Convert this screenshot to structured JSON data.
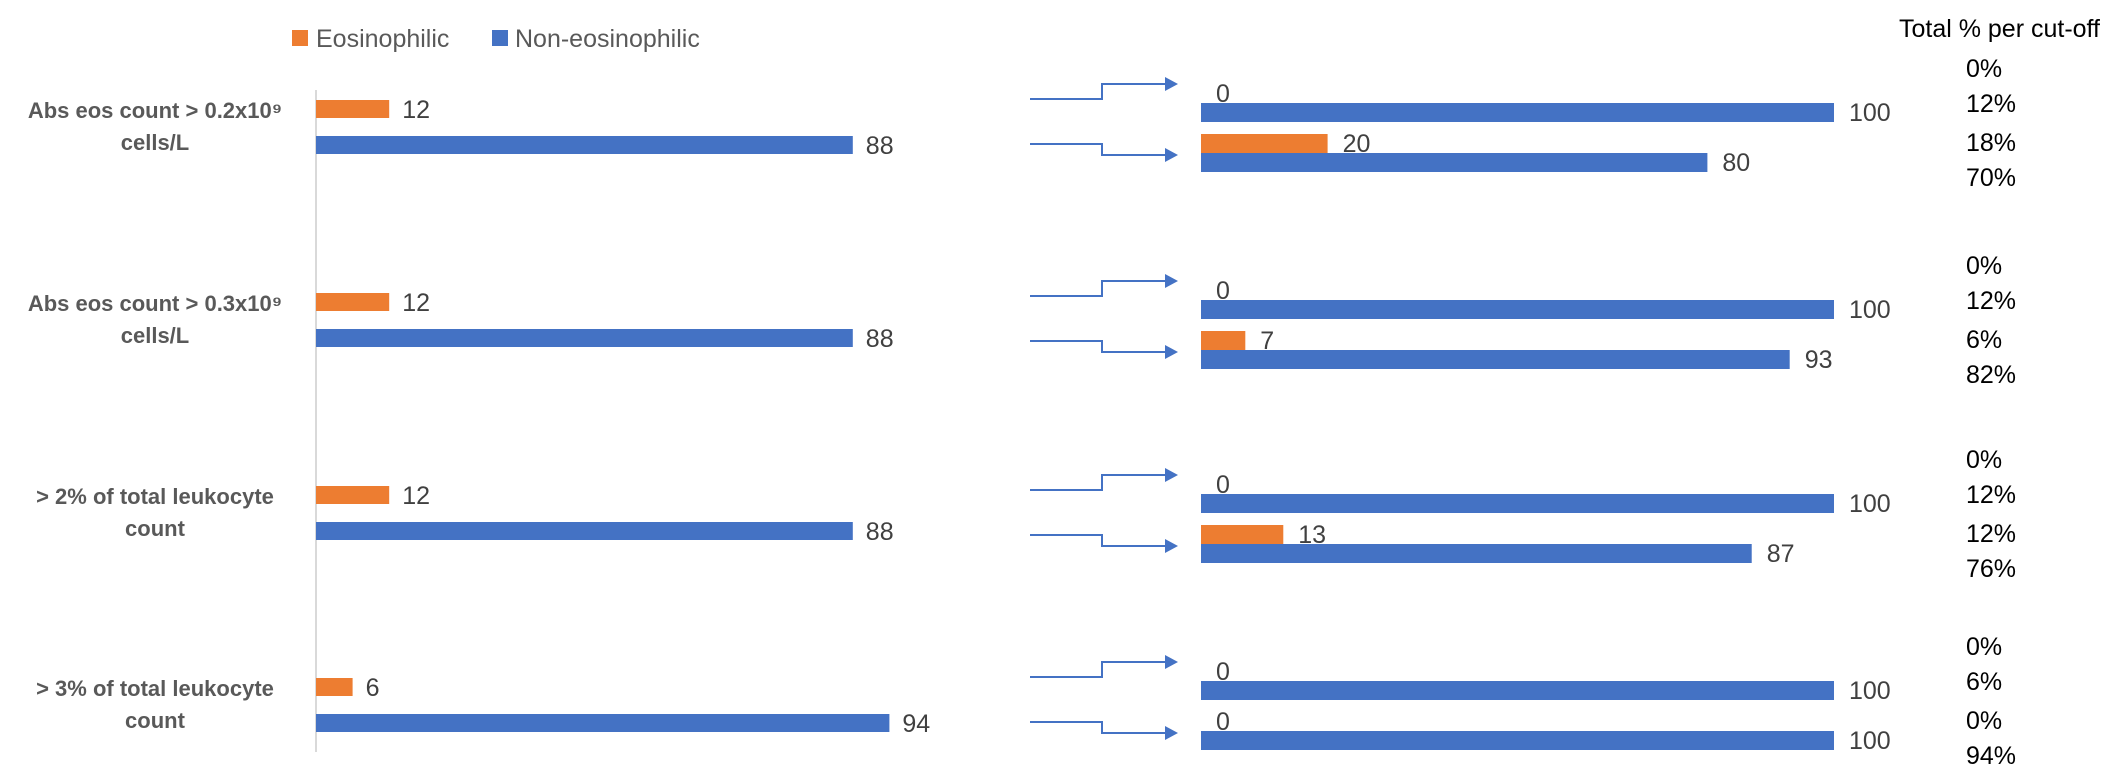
{
  "chart_data": {
    "type": "bar",
    "orientation": "horizontal",
    "legend": {
      "placement": "top",
      "entries": [
        {
          "name": "Eosinophilic",
          "color": "#ed7d31"
        },
        {
          "name": "Non-eosinophilic",
          "color": "#4472c4"
        }
      ]
    },
    "grid": false,
    "main_chart": {
      "categories": [
        [
          "Abs eos count > 0.2x10⁹",
          "cells/L"
        ],
        [
          "Abs eos count > 0.3x10⁹",
          "cells/L"
        ],
        [
          "> 2% of total leukocyte",
          "count"
        ],
        [
          "> 3% of total leukocyte",
          "count"
        ]
      ],
      "series": [
        {
          "name": "Eosinophilic",
          "values": [
            12,
            12,
            12,
            6
          ]
        },
        {
          "name": "Non-eosinophilic",
          "values": [
            88,
            88,
            88,
            94
          ]
        }
      ],
      "xlim": [
        0,
        100
      ]
    },
    "sub_chart": {
      "header": "Total % per cut-off",
      "groups": [
        {
          "pairs": [
            {
              "eos": 0,
              "non": 100,
              "pct": [
                "0%",
                "12%"
              ]
            },
            {
              "eos": 20,
              "non": 80,
              "pct": [
                "18%",
                "70%"
              ]
            }
          ]
        },
        {
          "pairs": [
            {
              "eos": 0,
              "non": 100,
              "pct": [
                "0%",
                "12%"
              ]
            },
            {
              "eos": 7,
              "non": 93,
              "pct": [
                "6%",
                "82%"
              ]
            }
          ]
        },
        {
          "pairs": [
            {
              "eos": 0,
              "non": 100,
              "pct": [
                "0%",
                "12%"
              ]
            },
            {
              "eos": 13,
              "non": 87,
              "pct": [
                "12%",
                "76%"
              ]
            }
          ]
        },
        {
          "pairs": [
            {
              "eos": 0,
              "non": 100,
              "pct": [
                "0%",
                "6%"
              ]
            },
            {
              "eos": 0,
              "non": 100,
              "pct": [
                "0%",
                "94%"
              ]
            }
          ]
        }
      ],
      "xlim": [
        0,
        100
      ]
    }
  }
}
